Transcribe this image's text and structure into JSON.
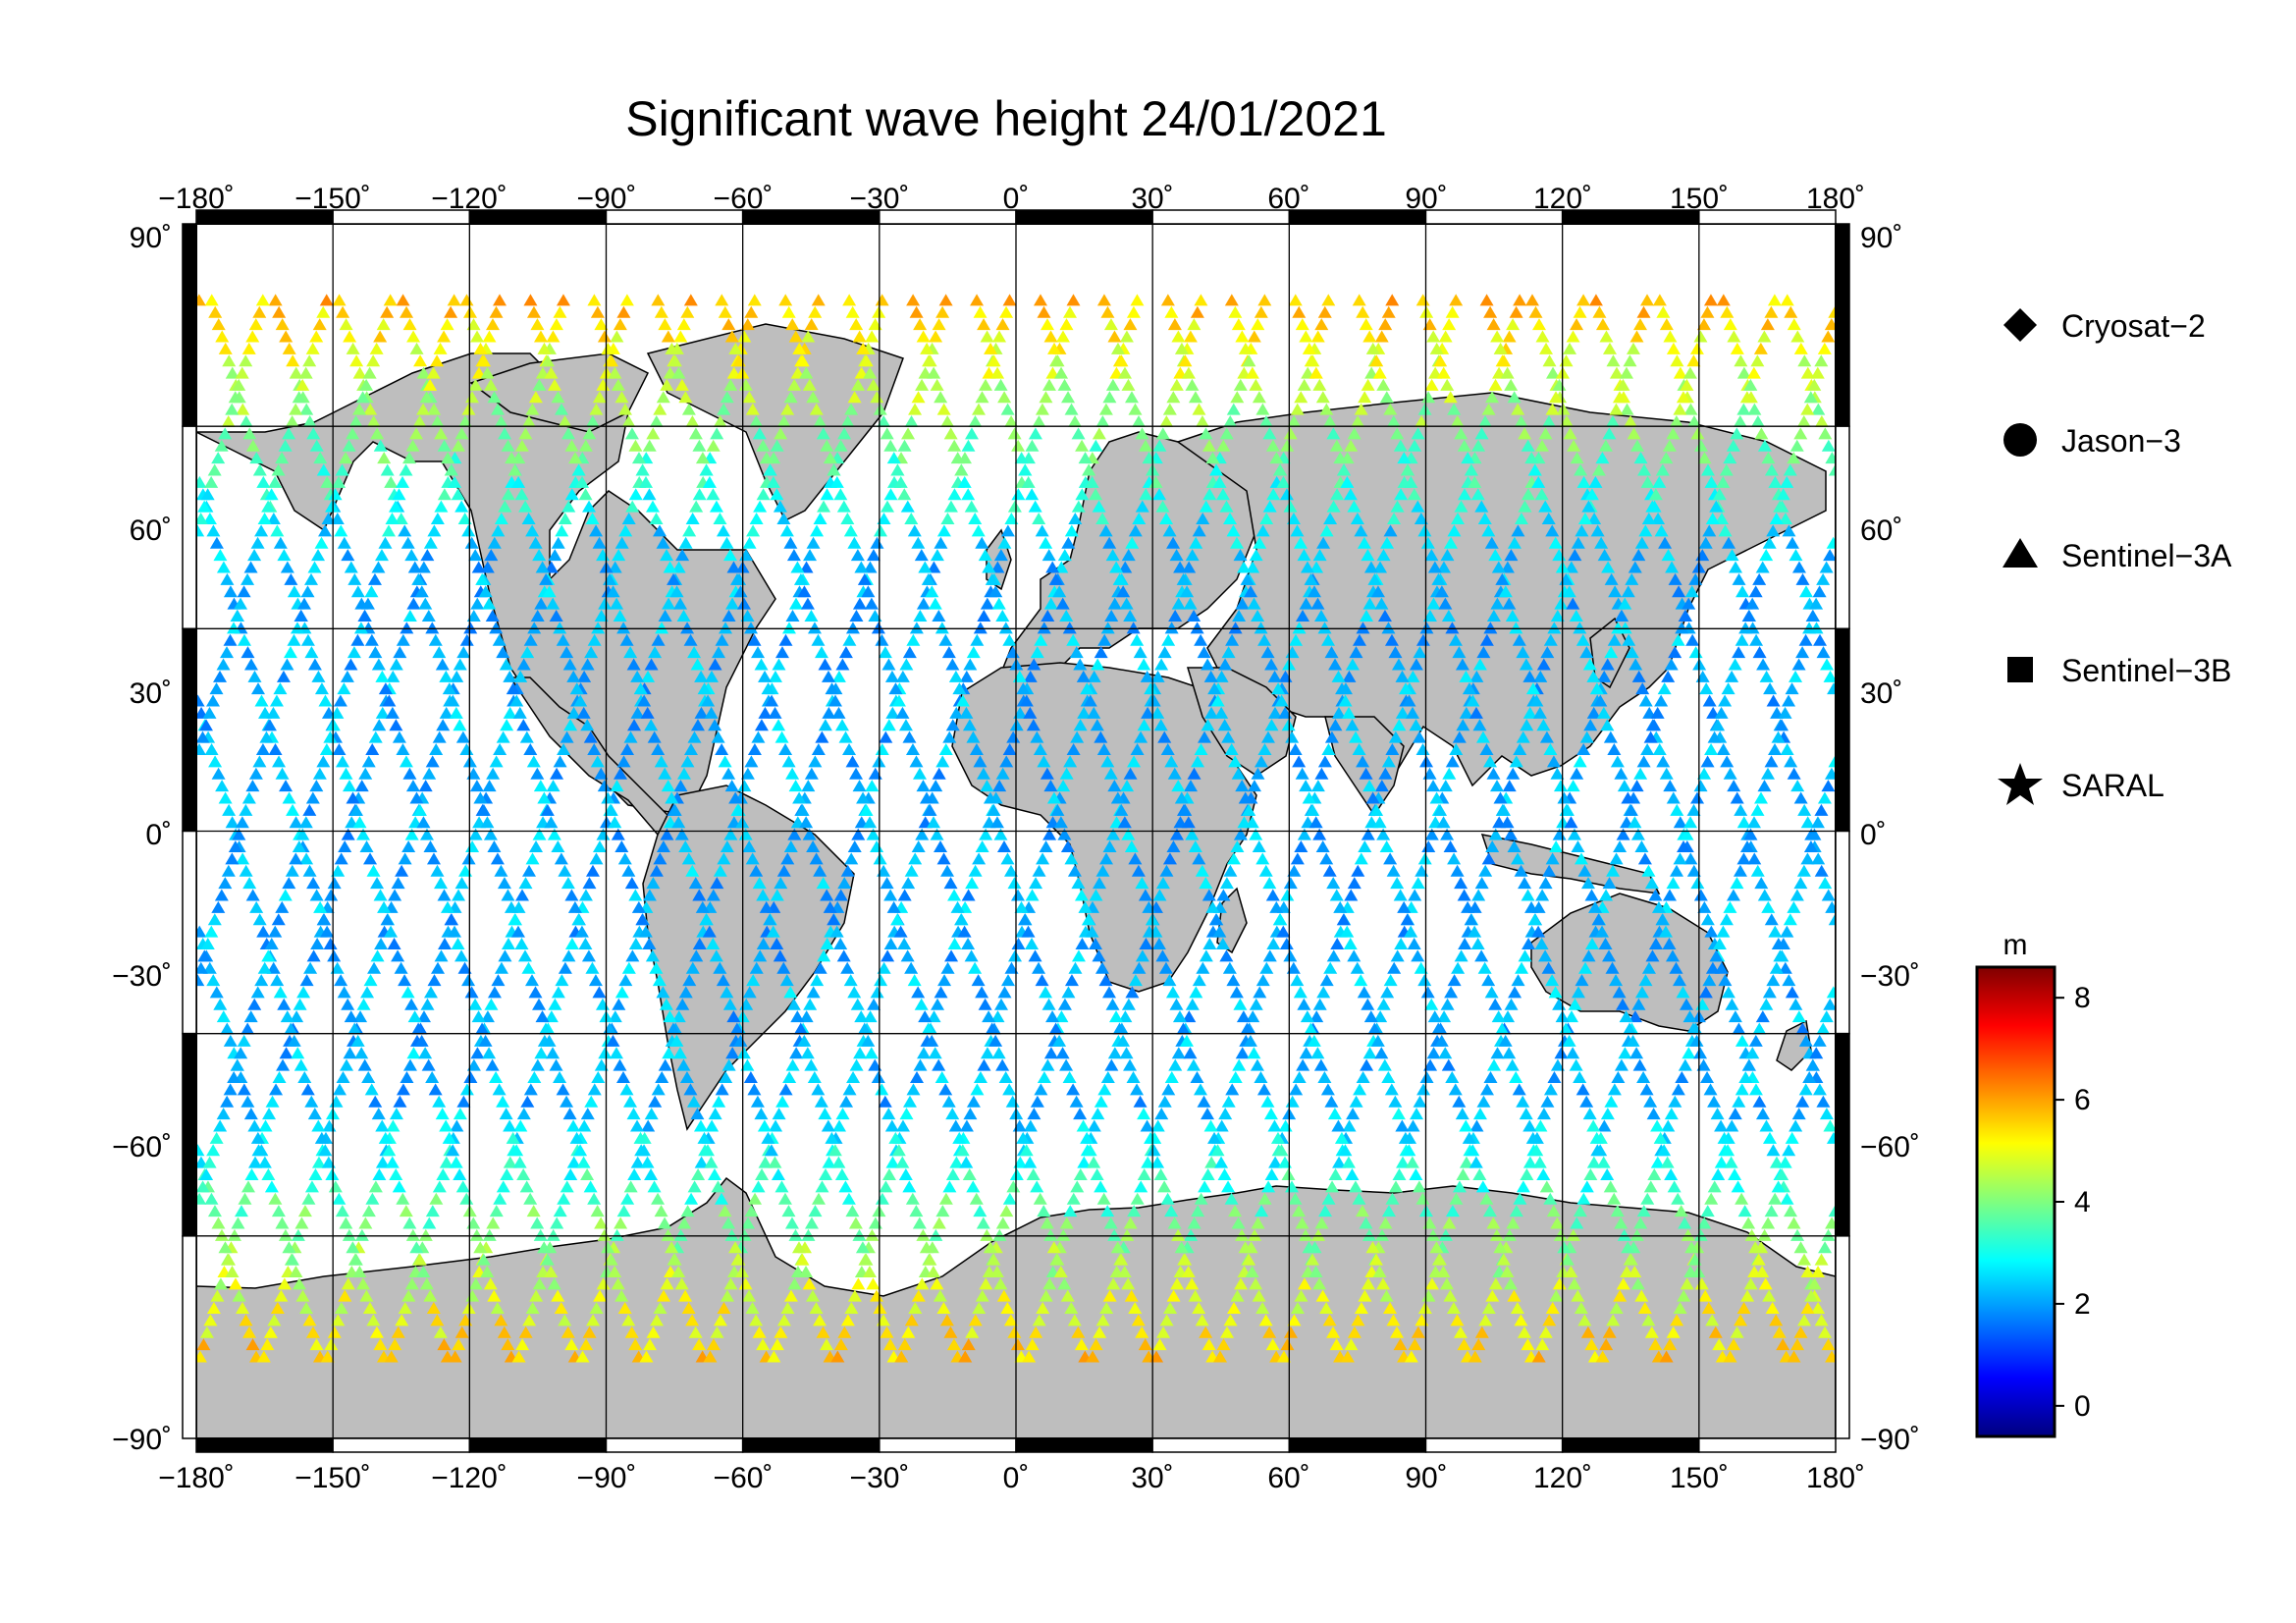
{
  "title": "Significant wave height 24/01/2021",
  "map": {
    "lon_range": [
      -180,
      180
    ],
    "lat_range": [
      -90,
      90
    ],
    "lon_ticks": [
      "−180˚",
      "−150˚",
      "−120˚",
      "−90˚",
      "−60˚",
      "−30˚",
      "0˚",
      "30˚",
      "60˚",
      "90˚",
      "120˚",
      "150˚",
      "180˚"
    ],
    "lat_ticks_left": [
      "90˚",
      "60˚",
      "30˚",
      "0˚",
      "−30˚",
      "−60˚",
      "−90˚"
    ],
    "lat_ticks_right": [
      "90˚",
      "60˚",
      "30˚",
      "0˚",
      "−30˚",
      "−60˚",
      "−90˚"
    ],
    "land_color": "#bebebe",
    "ocean_color": "#ffffff"
  },
  "legend": {
    "items": [
      {
        "label": "Cryosat−2",
        "marker": "diamond"
      },
      {
        "label": "Jason−3",
        "marker": "circle"
      },
      {
        "label": "Sentinel−3A",
        "marker": "triangle"
      },
      {
        "label": "Sentinel−3B",
        "marker": "square"
      },
      {
        "label": "SARAL",
        "marker": "star"
      }
    ]
  },
  "colorbar": {
    "unit": "m",
    "range": [
      -0.6,
      8.6
    ],
    "ticks": [
      "8",
      "6",
      "4",
      "2",
      "0"
    ],
    "colormap": "jet"
  }
}
